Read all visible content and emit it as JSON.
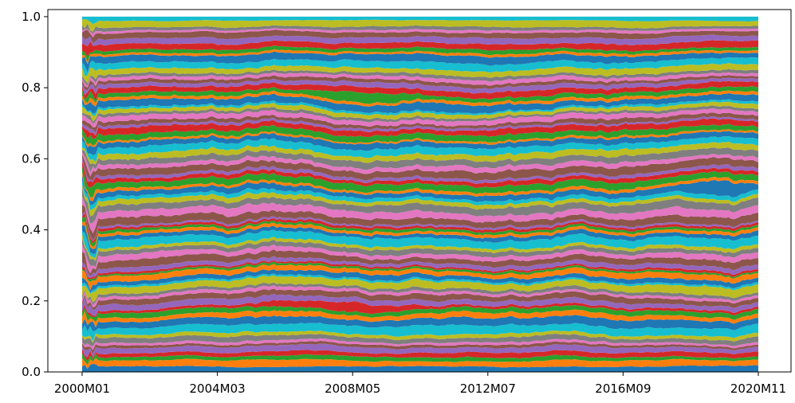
{
  "chart_data": {
    "type": "area",
    "stacked": true,
    "normalized": true,
    "title": "",
    "xlabel": "",
    "ylabel": "",
    "ylim": [
      0,
      1.02
    ],
    "yticks": [
      0.0,
      0.2,
      0.4,
      0.6,
      0.8,
      1.0
    ],
    "ytick_labels": [
      "0.0",
      "0.2",
      "0.4",
      "0.6",
      "0.8",
      "1.0"
    ],
    "xtick_labels": [
      "2000M01",
      "2004M03",
      "2008M05",
      "2012M07",
      "2016M09",
      "2020M11"
    ],
    "x_start": "2000M01",
    "x_end": "2020M11",
    "n_periods": 251,
    "n_series": 80,
    "grid": false,
    "legend": "none",
    "palette": [
      "#1f77b4",
      "#ff7f0e",
      "#2ca02c",
      "#d62728",
      "#9467bd",
      "#8c564b",
      "#e377c2",
      "#7f7f7f",
      "#bcbd22",
      "#17becf"
    ],
    "notable_bands": [
      {
        "description": "red band",
        "color": "#d62728",
        "approx_share_range": [
          0.14,
          0.19
        ],
        "period": "2005–2010"
      },
      {
        "description": "gray band",
        "color": "#7f7f7f",
        "approx_share_range": [
          0.8,
          0.85
        ],
        "period": "2007–2010"
      },
      {
        "description": "blue band",
        "color": "#1f77b4",
        "approx_share_range": [
          0.5,
          0.55
        ],
        "period": "2019–2020"
      }
    ]
  }
}
